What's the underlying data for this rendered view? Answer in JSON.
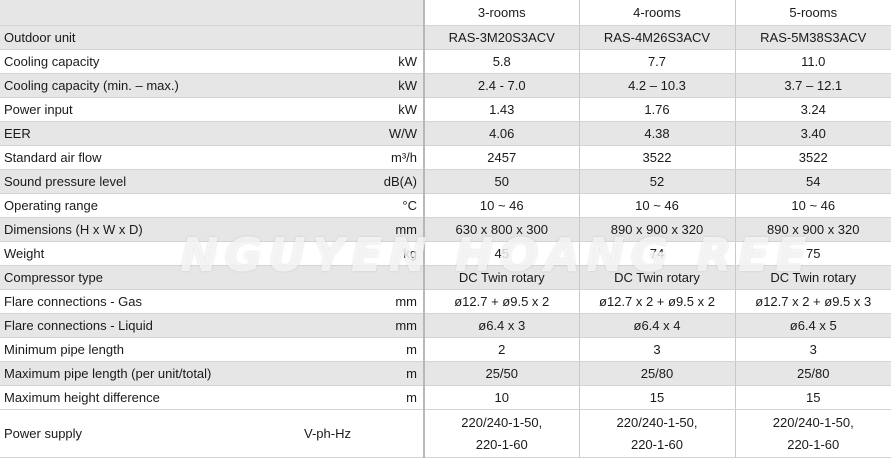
{
  "header": {
    "models": [
      "3-rooms",
      "4-rooms",
      "5-rooms"
    ],
    "outdoor_label": "Outdoor unit",
    "outdoor_units": [
      "RAS-3M20S3ACV",
      "RAS-4M26S3ACV",
      "RAS-5M38S3ACV"
    ]
  },
  "rows": [
    {
      "label": "Cooling capacity",
      "unit": "kW",
      "values": [
        "5.8",
        "7.7",
        "11.0"
      ]
    },
    {
      "label": "Cooling capacity (min. – max.)",
      "unit": "kW",
      "values": [
        "2.4 - 7.0",
        "4.2 – 10.3",
        "3.7 – 12.1"
      ]
    },
    {
      "label": "Power input",
      "unit": "kW",
      "values": [
        "1.43",
        "1.76",
        "3.24"
      ]
    },
    {
      "label": "EER",
      "unit": "W/W",
      "values": [
        "4.06",
        "4.38",
        "3.40"
      ]
    },
    {
      "label": "Standard air flow",
      "unit": "m³/h",
      "values": [
        "2457",
        "3522",
        "3522"
      ]
    },
    {
      "label": "Sound pressure level",
      "unit": "dB(A)",
      "values": [
        "50",
        "52",
        "54"
      ]
    },
    {
      "label": "Operating range",
      "unit": "°C",
      "values": [
        "10 ~ 46",
        "10 ~ 46",
        "10 ~ 46"
      ]
    },
    {
      "label": "Dimensions (H x W x D)",
      "unit": "mm",
      "values": [
        "630 x 800 x 300",
        "890 x 900 x 320",
        "890 x 900 x 320"
      ]
    },
    {
      "label": "Weight",
      "unit": "kg",
      "values": [
        "45",
        "74",
        "75"
      ]
    },
    {
      "label": "Compressor type",
      "unit": "",
      "values": [
        "DC Twin rotary",
        "DC Twin rotary",
        "DC Twin rotary"
      ]
    },
    {
      "label": "Flare connections - Gas",
      "unit": "mm",
      "values": [
        "ø12.7 + ø9.5 x 2",
        "ø12.7 x 2 + ø9.5 x 2",
        "ø12.7 x 2 + ø9.5 x 3"
      ]
    },
    {
      "label": "Flare connections  - Liquid",
      "unit": "mm",
      "values": [
        "ø6.4 x 3",
        "ø6.4 x 4",
        "ø6.4 x 5"
      ]
    },
    {
      "label": "Minimum pipe length",
      "unit": "m",
      "values": [
        "2",
        "3",
        "3"
      ]
    },
    {
      "label": "Maximum pipe length (per unit/total)",
      "unit": "m",
      "values": [
        "25/50",
        "25/80",
        "25/80"
      ]
    },
    {
      "label": "Maximum height difference",
      "unit": "m",
      "values": [
        "10",
        "15",
        "15"
      ]
    }
  ],
  "power_supply": {
    "label": "Power supply",
    "unit": "V-ph-Hz",
    "line1": "220/240-1-50,",
    "line2": "220-1-60"
  },
  "watermark": "NGUYEN HOANG REE"
}
